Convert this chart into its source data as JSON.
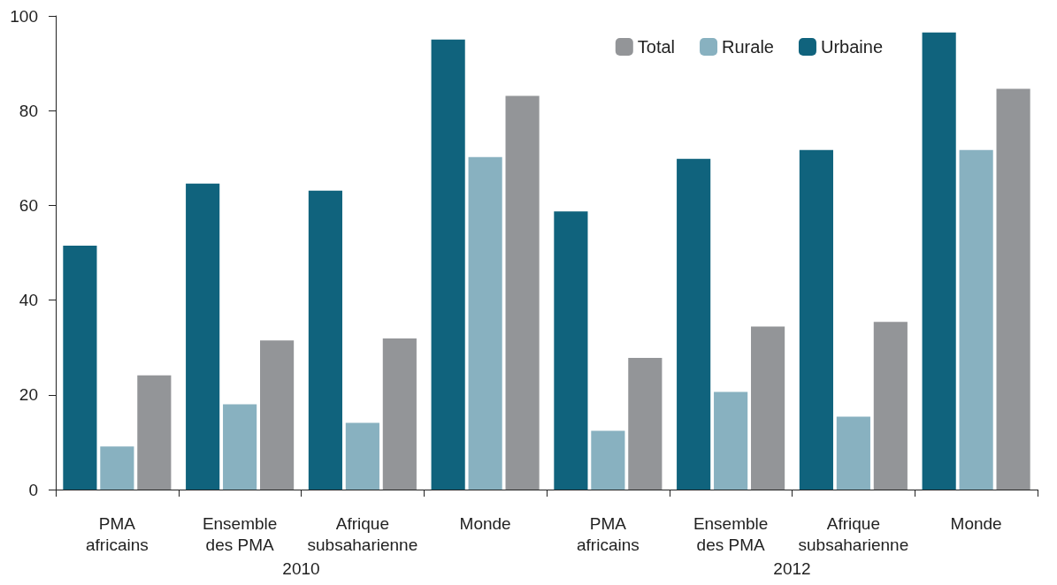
{
  "chart_data": {
    "type": "bar",
    "categories": [
      "PMA\nafricains",
      "Ensemble\ndes PMA",
      "Afrique\nsubsaharienne",
      "Monde",
      "PMA\nafricains",
      "Ensemble\ndes PMA",
      "Afrique\nsubsaharienne",
      "Monde"
    ],
    "series": [
      {
        "name": "Urbaine",
        "color": "#10637d",
        "values": [
          51.5,
          64.6,
          63.1,
          95,
          58.7,
          69.8,
          71.7,
          96.5
        ]
      },
      {
        "name": "Rurale",
        "color": "#88b1c0",
        "values": [
          9.1,
          18,
          14.1,
          70.2,
          12.4,
          20.6,
          15.4,
          71.7
        ]
      },
      {
        "name": "Total",
        "color": "#939598",
        "values": [
          24.1,
          31.5,
          31.9,
          83.1,
          27.8,
          34.4,
          35.4,
          84.6
        ]
      }
    ],
    "annotations": [
      "2010",
      "2012"
    ],
    "ylim": [
      0,
      100
    ],
    "yticks": [
      0,
      20,
      40,
      60,
      80,
      100
    ],
    "grid": false,
    "legend": "top right"
  }
}
